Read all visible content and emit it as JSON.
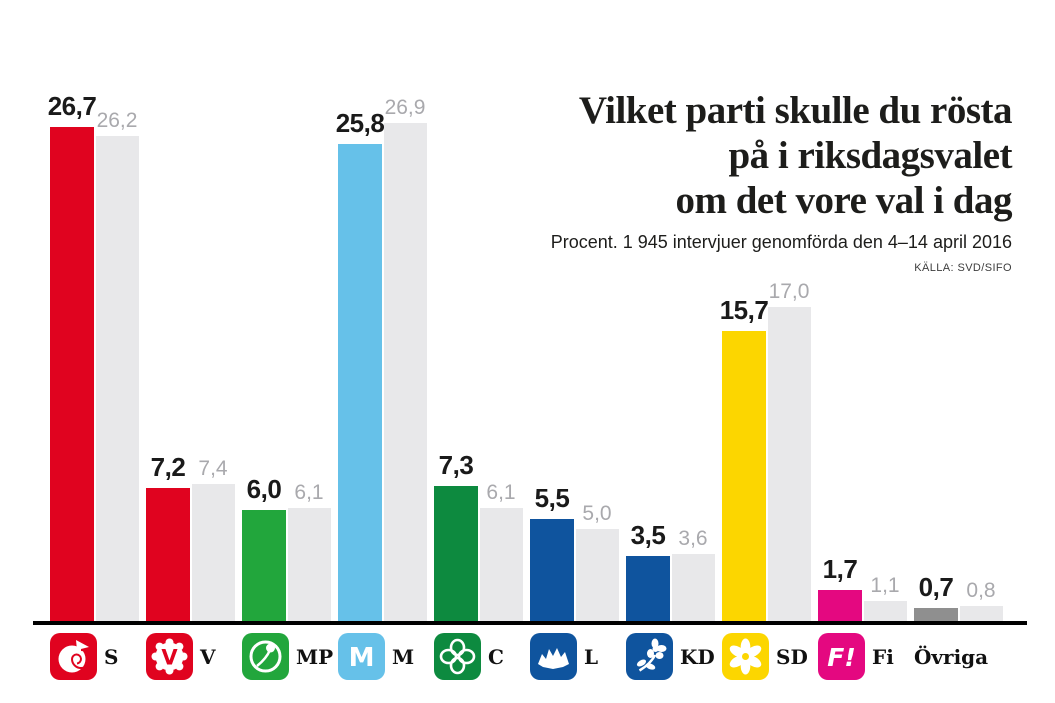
{
  "title": {
    "lines": [
      "Vilket parti skulle du rösta",
      "på i riksdagsvalet",
      "om det vore val i dag"
    ]
  },
  "subtitle": "Procent. 1 945  intervjuer genomförda den 4–14 april 2016",
  "source": "KÄLLA: SVD/SIFO",
  "colors": {
    "text": "#1a1a1a",
    "gray_label": "#a9a9ad",
    "compare_bar": "#e8e8ea",
    "baseline": "#000000"
  },
  "chart_data": {
    "type": "bar",
    "title": "Vilket parti skulle du rösta på i riksdagsvalet om det vore val i dag",
    "subtitle": "Procent. 1 945 intervjuer genomförda den 4–14 april 2016",
    "source": "KÄLLA: SVD/SIFO",
    "categories": [
      "S",
      "V",
      "MP",
      "M",
      "C",
      "L",
      "KD",
      "SD",
      "Fi",
      "Övriga"
    ],
    "series": [
      {
        "name": "current",
        "values": [
          26.7,
          7.2,
          6.0,
          25.8,
          7.3,
          5.5,
          3.5,
          15.7,
          1.7,
          0.7
        ]
      },
      {
        "name": "previous",
        "values": [
          26.2,
          7.4,
          6.1,
          26.9,
          6.1,
          5.0,
          3.6,
          17.0,
          1.1,
          0.8
        ]
      }
    ],
    "value_labels_current": [
      "26,7",
      "7,2",
      "6,0",
      "25,8",
      "7,3",
      "5,5",
      "3,5",
      "15,7",
      "1,7",
      "0,7"
    ],
    "value_labels_previous": [
      "26,2",
      "7,4",
      "6,1",
      "26,9",
      "6,1",
      "5,0",
      "3,6",
      "17,0",
      "1,1",
      "0,8"
    ],
    "bar_colors": [
      "#e0031f",
      "#e0031f",
      "#22a63c",
      "#66c1e9",
      "#0d8a3f",
      "#0f549e",
      "#0f549e",
      "#fcd600",
      "#e40880",
      "#8f8f8f"
    ],
    "compare_color": "#e8e8ea",
    "ylim": [
      0,
      28
    ],
    "grid": false,
    "legend_position": "bottom-icons"
  },
  "parties": [
    {
      "label": "S",
      "slug": "s",
      "icon": "s-rose-icon",
      "color": "#e0031f"
    },
    {
      "label": "V",
      "slug": "v",
      "icon": "v-flower-icon",
      "color": "#e0031f"
    },
    {
      "label": "MP",
      "slug": "mp",
      "icon": "mp-dandelion-icon",
      "color": "#22a63c"
    },
    {
      "label": "M",
      "slug": "m",
      "icon": "m-letter-icon",
      "color": "#66c1e9"
    },
    {
      "label": "C",
      "slug": "c",
      "icon": "c-clover-icon",
      "color": "#0d8a3f"
    },
    {
      "label": "L",
      "slug": "l",
      "icon": "l-cornflower-icon",
      "color": "#0f549e"
    },
    {
      "label": "KD",
      "slug": "kd",
      "icon": "kd-anemone-icon",
      "color": "#0f549e"
    },
    {
      "label": "SD",
      "slug": "sd",
      "icon": "sd-anemone-icon",
      "color": "#fcd600"
    },
    {
      "label": "Fi",
      "slug": "fi",
      "icon": "fi-letter-icon",
      "color": "#e40880"
    },
    {
      "label": "Övriga",
      "slug": "ovriga",
      "icon": null,
      "color": null
    }
  ]
}
